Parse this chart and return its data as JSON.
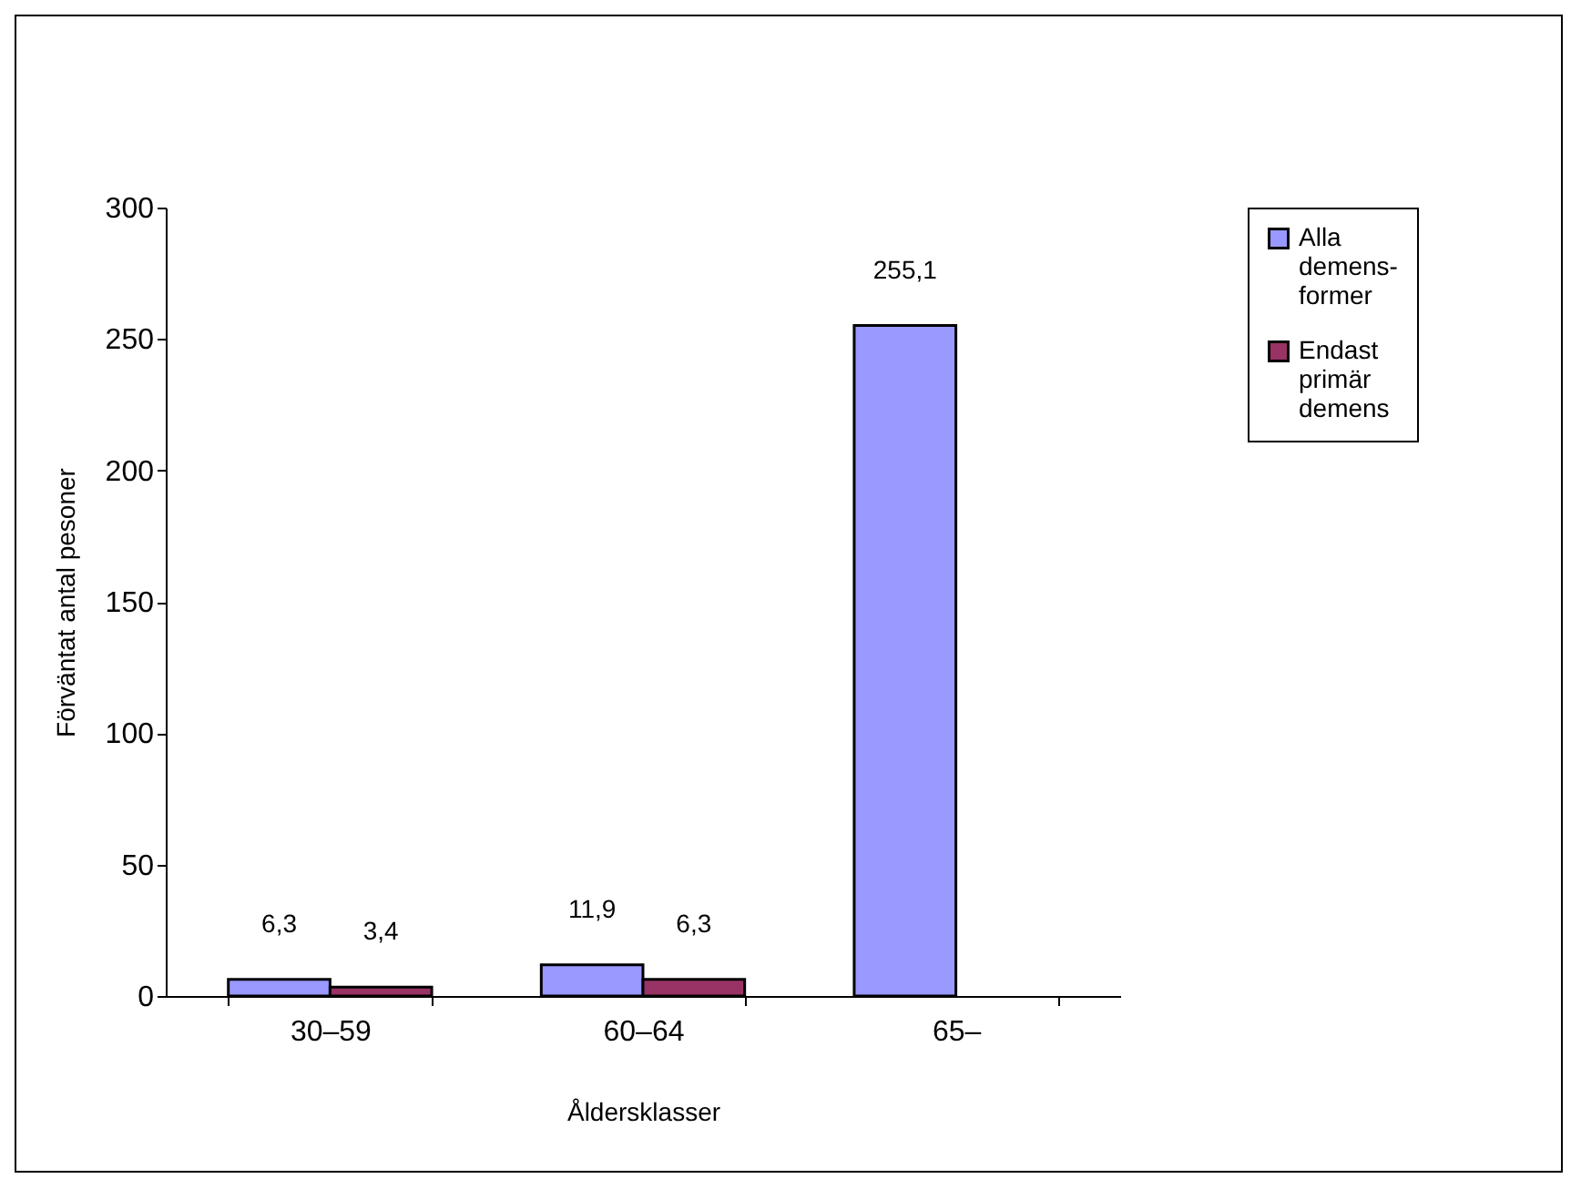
{
  "chart_data": {
    "type": "bar",
    "xlabel": "Åldersklasser",
    "ylabel": "Förväntat antal pesoner",
    "categories": [
      "30–59",
      "60–64",
      "65–"
    ],
    "series": [
      {
        "name": "Alla demens-former",
        "color": "#9999ff",
        "values": [
          6.3,
          11.9,
          255.1
        ],
        "value_labels": [
          "6,3",
          "11,9",
          "255,1"
        ]
      },
      {
        "name": "Endast primär demens",
        "color": "#993366",
        "values": [
          3.4,
          6.3,
          null
        ],
        "value_labels": [
          "3,4",
          "6,3",
          null
        ]
      }
    ],
    "ylim": [
      0,
      300
    ],
    "yticks": [
      0,
      50,
      100,
      150,
      200,
      250,
      300
    ],
    "grid": false,
    "legend": "right"
  }
}
